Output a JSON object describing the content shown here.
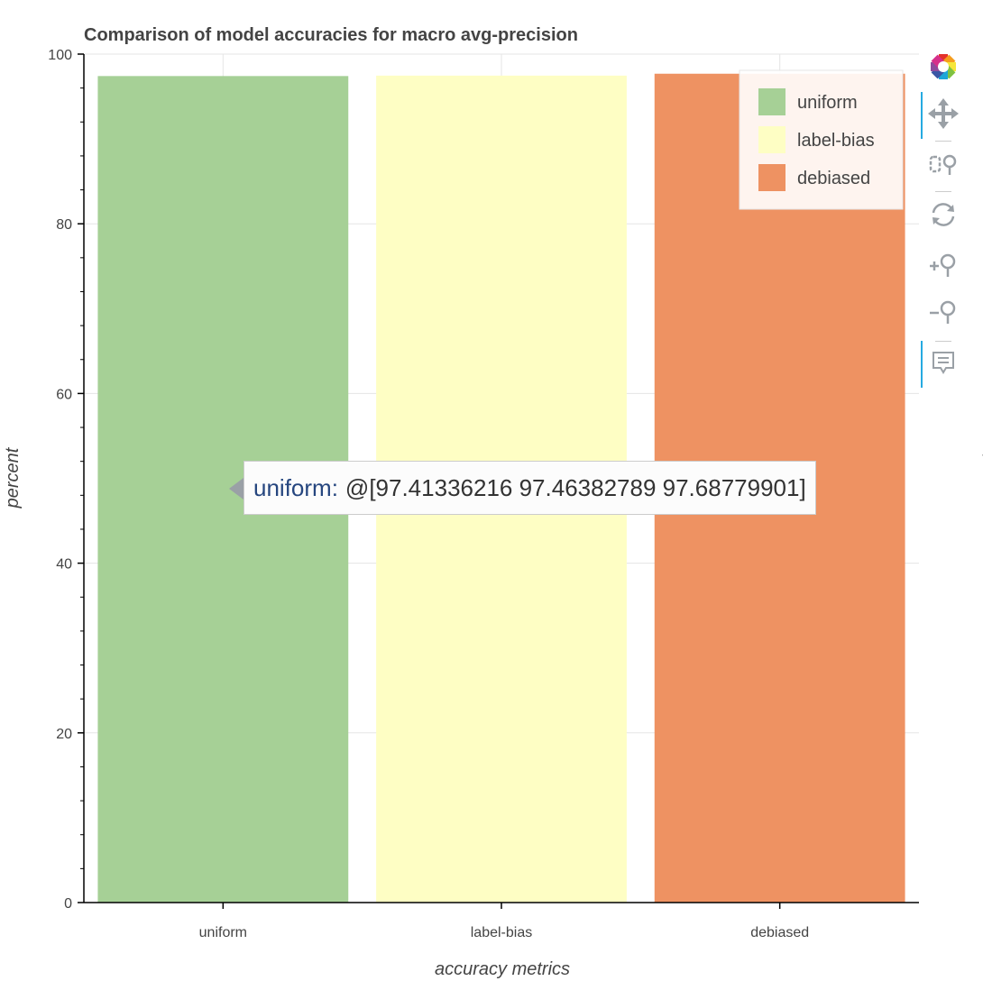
{
  "chart_data": {
    "type": "bar",
    "title": "Comparison of model accuracies for macro avg-precision",
    "categories": [
      "uniform",
      "label-bias",
      "debiased"
    ],
    "values": [
      97.41336216,
      97.46382789,
      97.68779901
    ],
    "colors": [
      "#a6d096",
      "#fefec4",
      "#ee9262"
    ],
    "xlabel": "accuracy metrics",
    "ylabel": "percent",
    "ylim": [
      0,
      100
    ],
    "yticks": [
      0,
      20,
      40,
      60,
      80,
      100
    ],
    "grid": true,
    "legend": {
      "placement": "top-right",
      "entries": [
        "uniform",
        "label-bias",
        "debiased"
      ]
    }
  },
  "tooltip": {
    "key": "uniform:",
    "value": "@[97.41336216 97.46382789 97.68779901]"
  },
  "right_plot_ylabel_fragment": "percent",
  "toolbar": {
    "tools": [
      {
        "name": "bokeh-logo-icon",
        "interactable": false
      },
      {
        "name": "pan-icon",
        "interactable": true
      },
      {
        "name": "box-zoom-icon",
        "interactable": true
      },
      {
        "name": "reset-icon",
        "interactable": true
      },
      {
        "name": "zoom-in-icon",
        "interactable": true
      },
      {
        "name": "zoom-out-icon",
        "interactable": true
      },
      {
        "name": "hover-icon",
        "interactable": true
      }
    ],
    "accent_color": "#26aae1"
  }
}
